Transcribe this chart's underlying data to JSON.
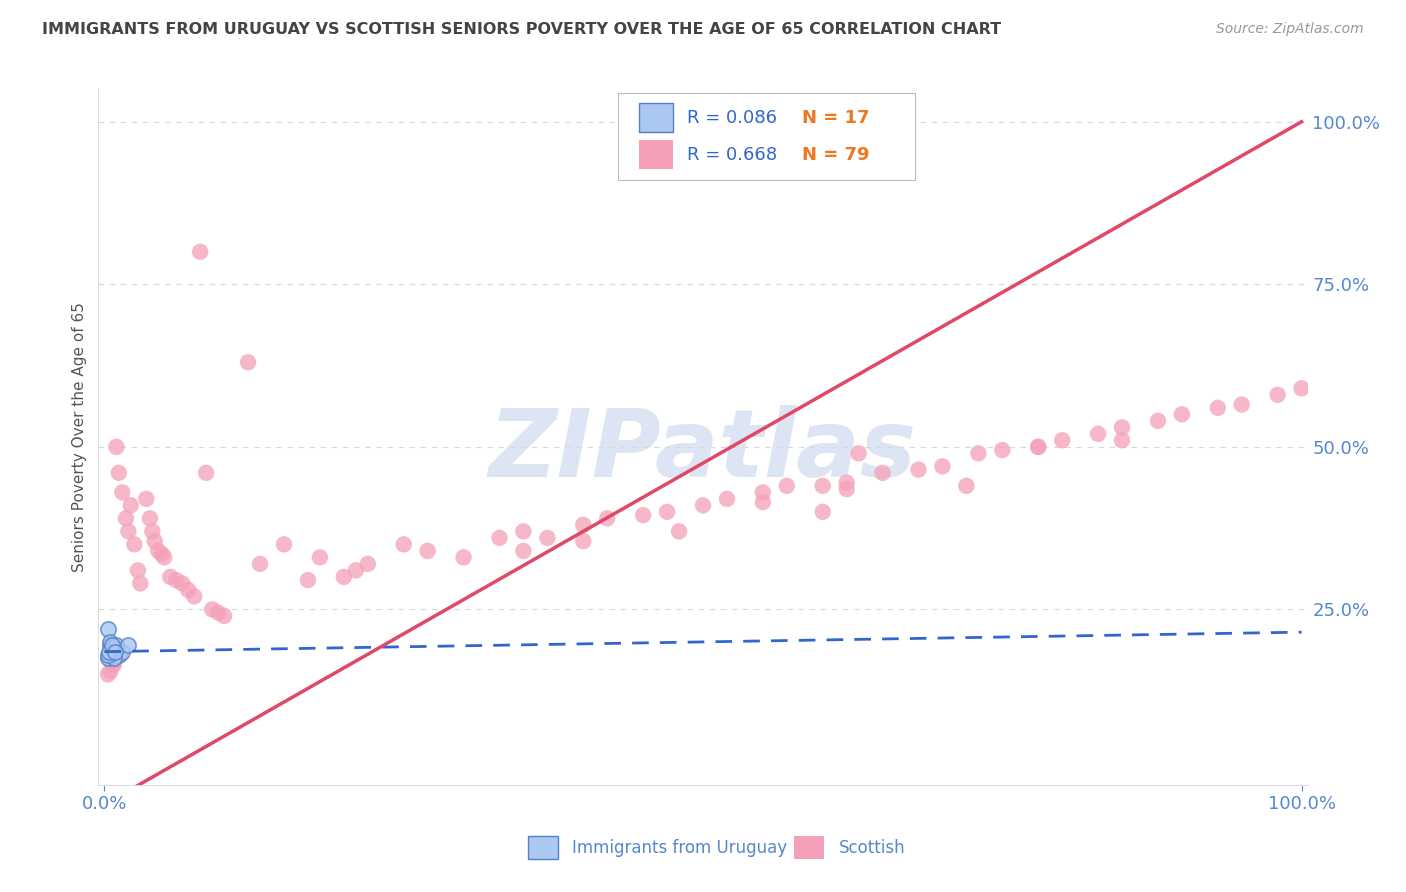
{
  "title": "IMMIGRANTS FROM URUGUAY VS SCOTTISH SENIORS POVERTY OVER THE AGE OF 65 CORRELATION CHART",
  "source": "Source: ZipAtlas.com",
  "ylabel_label": "Seniors Poverty Over the Age of 65",
  "r_blue": 0.086,
  "n_blue": 17,
  "r_pink": 0.668,
  "n_pink": 79,
  "legend_label_blue": "Immigrants from Uruguay",
  "legend_label_pink": "Scottish",
  "bg_color": "#ffffff",
  "grid_color": "#cccccc",
  "blue_scatter_color": "#aac8f0",
  "blue_scatter_edge": "#5580c8",
  "blue_line_color": "#3366cc",
  "pink_scatter_color": "#f4a0b8",
  "pink_line_color": "#e04868",
  "title_color": "#444444",
  "source_color": "#999999",
  "axis_tick_color": "#5588cc",
  "watermark_color": "#dde5f5",
  "legend_r_color": "#3366cc",
  "legend_n_color": "#ee7722",
  "ylabel_color": "#555555"
}
